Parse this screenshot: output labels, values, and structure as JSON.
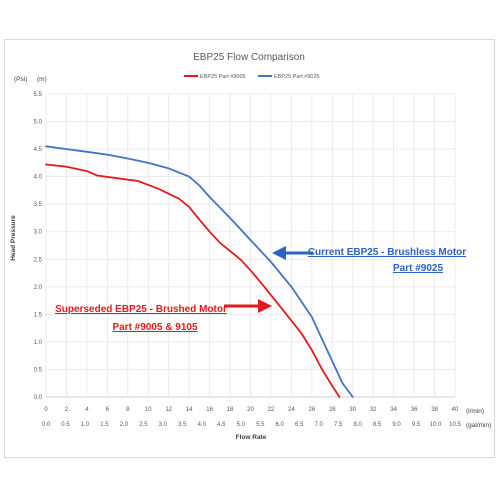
{
  "chart_data": {
    "type": "line",
    "title": "EBP25 Flow Comparison",
    "ylabel": "Head Pressure",
    "xlabel": "Flow Rate",
    "y_units": [
      "(Psi)",
      "(m)"
    ],
    "x_units": [
      "(l/min)",
      "(gal/min)"
    ],
    "ylim": [
      0,
      5.5
    ],
    "y_ticks": [
      "0.0",
      "0.5",
      "1.0",
      "1.5",
      "2.0",
      "2.5",
      "3.0",
      "3.5",
      "4.0",
      "4.5",
      "5.0",
      "5.5"
    ],
    "xlim": [
      0,
      40
    ],
    "x_ticks_lpm": [
      "0",
      "2",
      "4",
      "6",
      "8",
      "10",
      "12",
      "14",
      "16",
      "18",
      "20",
      "22",
      "24",
      "26",
      "28",
      "30",
      "32",
      "34",
      "36",
      "38",
      "40"
    ],
    "x_ticks_gpm": [
      "0.0",
      "0.5",
      "1.0",
      "1.5",
      "2.0",
      "2.5",
      "3.0",
      "3.5",
      "4.0",
      "4.5",
      "5.0",
      "5.5",
      "6.0",
      "6.5",
      "7.0",
      "7.5",
      "8.0",
      "8.5",
      "9.0",
      "9.5",
      "10.0",
      "10.5"
    ],
    "grid": true,
    "legend_position": "top-center",
    "series": [
      {
        "name": "EBP25  Part #9005",
        "color": "#e31a1c",
        "points": [
          [
            0,
            4.22
          ],
          [
            2,
            4.18
          ],
          [
            4,
            4.1
          ],
          [
            5,
            4.02
          ],
          [
            7,
            3.97
          ],
          [
            9,
            3.92
          ],
          [
            11,
            3.78
          ],
          [
            13,
            3.6
          ],
          [
            14,
            3.45
          ],
          [
            15,
            3.22
          ],
          [
            16,
            3.0
          ],
          [
            17,
            2.8
          ],
          [
            19,
            2.5
          ],
          [
            20,
            2.3
          ],
          [
            21,
            2.08
          ],
          [
            23,
            1.62
          ],
          [
            25,
            1.15
          ],
          [
            26,
            0.85
          ],
          [
            27,
            0.5
          ],
          [
            28,
            0.2
          ],
          [
            28.7,
            0.0
          ]
        ]
      },
      {
        "name": "EBP25 Part #9025",
        "color": "#4472c4",
        "points": [
          [
            0,
            4.55
          ],
          [
            2,
            4.5
          ],
          [
            4,
            4.45
          ],
          [
            6,
            4.4
          ],
          [
            8,
            4.33
          ],
          [
            10,
            4.25
          ],
          [
            12,
            4.15
          ],
          [
            14,
            4.0
          ],
          [
            15,
            3.84
          ],
          [
            16,
            3.63
          ],
          [
            18,
            3.25
          ],
          [
            20,
            2.85
          ],
          [
            22,
            2.45
          ],
          [
            24,
            2.0
          ],
          [
            26,
            1.45
          ],
          [
            27,
            1.05
          ],
          [
            28,
            0.65
          ],
          [
            29,
            0.25
          ],
          [
            30,
            0.0
          ]
        ]
      }
    ],
    "annotations": [
      {
        "lines": [
          "Current EBP25 - Brushless Motor",
          "Part #9025"
        ],
        "color": "#2e63c4"
      },
      {
        "lines": [
          "Superseded EBP25 - Brushed Motor",
          "Part #9005 & 9105"
        ],
        "color": "#e31a1c"
      }
    ]
  }
}
